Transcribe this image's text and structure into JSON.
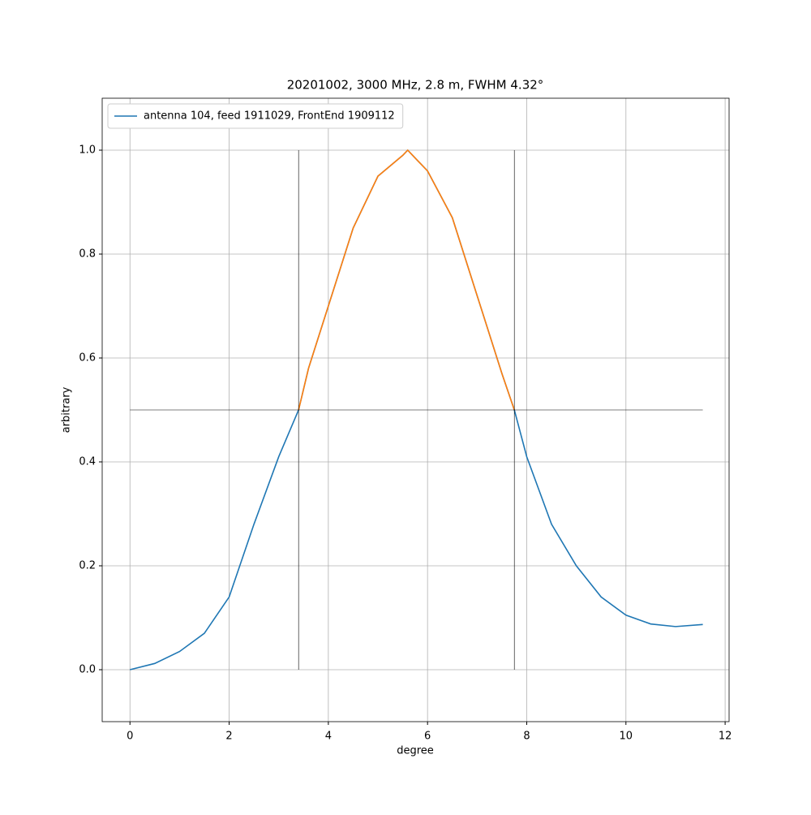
{
  "chart_data": {
    "type": "line",
    "title": "20201002, 3000 MHz, 2.8 m, FWHM 4.32°",
    "xlabel": "degree",
    "ylabel": "arbitrary",
    "xlim": [
      -0.56,
      12.08
    ],
    "ylim": [
      -0.1,
      1.1
    ],
    "xticks": [
      0,
      2,
      4,
      6,
      8,
      10,
      12
    ],
    "yticks": [
      {
        "value": 0,
        "label": "0.0"
      },
      {
        "value": 0.2,
        "label": "0.2"
      },
      {
        "value": 0.4,
        "label": "0.4"
      },
      {
        "value": 0.6,
        "label": "0.6"
      },
      {
        "value": 0.8,
        "label": "0.8"
      },
      {
        "value": 1,
        "label": "1.0"
      }
    ],
    "grid": true,
    "legend": "upper left",
    "series": [
      {
        "name": "antenna 104, feed 1911029, FrontEnd 1909112",
        "color": "#1f77b4",
        "x": [
          0,
          0.5,
          1,
          1.5,
          2,
          2.5,
          3,
          3.4,
          3.6,
          4,
          4.5,
          5,
          5.5,
          5.6,
          6,
          6.5,
          7,
          7.5,
          7.75,
          8,
          8.5,
          9,
          9.5,
          10,
          10.5,
          11,
          11.55
        ],
        "values": [
          0,
          0.012,
          0.035,
          0.07,
          0.14,
          0.28,
          0.41,
          0.5,
          0.58,
          0.7,
          0.85,
          0.95,
          0.99,
          1.0,
          0.96,
          0.87,
          0.72,
          0.57,
          0.5,
          0.41,
          0.28,
          0.2,
          0.14,
          0.105,
          0.088,
          0.083,
          0.087
        ]
      },
      {
        "color": "#ff7f0e",
        "x": [
          3.4,
          3.6,
          4,
          4.5,
          5,
          5.5,
          5.6,
          6,
          6.5,
          7,
          7.5,
          7.75
        ],
        "values": [
          0.5,
          0.58,
          0.7,
          0.85,
          0.95,
          0.99,
          1.0,
          0.96,
          0.87,
          0.72,
          0.57,
          0.5
        ]
      }
    ],
    "reference_lines": [
      {
        "color": "#000000",
        "x": [
          3.4,
          3.4
        ],
        "values": [
          0,
          1
        ]
      },
      {
        "color": "#000000",
        "x": [
          7.75,
          7.75
        ],
        "values": [
          0,
          1
        ]
      },
      {
        "color": "#000000",
        "x": [
          0,
          11.55
        ],
        "values": [
          0.5,
          0.5
        ]
      }
    ]
  }
}
